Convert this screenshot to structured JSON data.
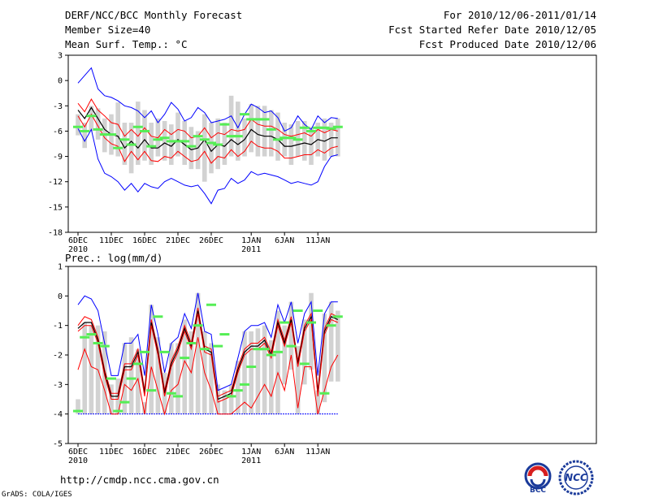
{
  "header": {
    "title": "DERF/NCC/BCC Monthly Forecast",
    "member_size": "Member Size=40",
    "variable": "Mean Surf. Temp.: °C",
    "period": "For 2010/12/06-2011/01/14",
    "start_date": "Fcst Started Refer Date 2010/12/05",
    "produced_date": "Fcst Produced Date 2010/12/06"
  },
  "footer": {
    "url": "http://cmdp.ncc.cma.gov.cn",
    "credit": "GrADS: COLA/IGES",
    "logo_bcc": "BCC",
    "logo_ncc": "NCC"
  },
  "colors": {
    "envelope": "#0000ff",
    "spread": "#ff0000",
    "mean": "#000000",
    "member_bar": "#d2d2d2",
    "mode_mark": "#55ee55"
  },
  "chart_data": [
    {
      "type": "line",
      "title": "Mean Surf. Temp.: °C",
      "ylim": [
        -18,
        3
      ],
      "yticks": [
        "3",
        "0",
        "-3",
        "-6",
        "-9",
        "-12",
        "-15",
        "-18"
      ],
      "xticks": [
        {
          "day": 0,
          "label": "6DEC",
          "sub": "2010"
        },
        {
          "day": 5,
          "label": "11DEC",
          "sub": ""
        },
        {
          "day": 10,
          "label": "16DEC",
          "sub": ""
        },
        {
          "day": 15,
          "label": "21DEC",
          "sub": ""
        },
        {
          "day": 20,
          "label": "26DEC",
          "sub": ""
        },
        {
          "day": 26,
          "label": "1JAN",
          "sub": "2011"
        },
        {
          "day": 31,
          "label": "6JAN",
          "sub": ""
        },
        {
          "day": 36,
          "label": "11JAN",
          "sub": ""
        }
      ],
      "x": [
        0,
        1,
        2,
        3,
        4,
        5,
        6,
        7,
        8,
        9,
        10,
        11,
        12,
        13,
        14,
        15,
        16,
        17,
        18,
        19,
        20,
        21,
        22,
        23,
        24,
        25,
        26,
        27,
        28,
        29,
        30,
        31,
        32,
        33,
        34,
        35,
        36,
        37,
        38,
        39
      ],
      "series": [
        {
          "name": "max",
          "role": "envelope",
          "values": [
            -0.3,
            0.6,
            1.5,
            -1.0,
            -1.8,
            -2.0,
            -2.4,
            -3.0,
            -3.2,
            -3.6,
            -4.4,
            -3.6,
            -5.0,
            -4.0,
            -2.6,
            -3.4,
            -4.8,
            -4.4,
            -3.2,
            -3.8,
            -5.0,
            -4.8,
            -4.6,
            -4.2,
            -5.6,
            -4.0,
            -2.8,
            -3.2,
            -3.8,
            -3.6,
            -4.4,
            -6.0,
            -5.6,
            -4.2,
            -5.2,
            -5.8,
            -4.2,
            -5.0,
            -4.4,
            -4.5
          ]
        },
        {
          "name": "upper",
          "role": "spread",
          "values": [
            -2.7,
            -3.7,
            -2.2,
            -3.5,
            -4.2,
            -5.0,
            -5.2,
            -6.6,
            -5.8,
            -6.6,
            -5.6,
            -6.6,
            -6.8,
            -5.8,
            -6.4,
            -5.8,
            -6.0,
            -6.8,
            -6.6,
            -5.6,
            -6.8,
            -6.2,
            -6.4,
            -5.8,
            -6.0,
            -5.8,
            -4.6,
            -5.2,
            -5.4,
            -5.4,
            -5.8,
            -6.4,
            -6.6,
            -6.4,
            -6.2,
            -6.6,
            -5.8,
            -6.2,
            -5.8,
            -6.0
          ]
        },
        {
          "name": "mean",
          "role": "mean",
          "values": [
            -3.5,
            -4.5,
            -3.2,
            -4.5,
            -5.8,
            -6.4,
            -6.6,
            -8.0,
            -7.2,
            -8.0,
            -7.0,
            -8.0,
            -8.0,
            -7.4,
            -7.8,
            -7.0,
            -7.6,
            -8.2,
            -8.0,
            -7.0,
            -8.4,
            -7.6,
            -7.8,
            -7.0,
            -7.6,
            -7.0,
            -5.8,
            -6.4,
            -6.6,
            -6.6,
            -7.0,
            -7.8,
            -7.8,
            -7.6,
            -7.4,
            -7.6,
            -7.0,
            -7.2,
            -6.8,
            -6.8
          ]
        },
        {
          "name": "lower",
          "role": "spread",
          "values": [
            -4.2,
            -5.5,
            -4.0,
            -5.4,
            -6.8,
            -7.5,
            -7.8,
            -9.6,
            -8.4,
            -9.4,
            -8.4,
            -9.5,
            -9.6,
            -9.0,
            -9.2,
            -8.4,
            -9.0,
            -9.6,
            -9.4,
            -8.4,
            -9.8,
            -9.0,
            -9.2,
            -8.2,
            -9.0,
            -8.4,
            -7.2,
            -7.8,
            -8.0,
            -8.0,
            -8.4,
            -9.2,
            -9.2,
            -9.0,
            -8.8,
            -8.8,
            -8.2,
            -8.6,
            -8.0,
            -7.8
          ]
        },
        {
          "name": "min",
          "role": "envelope",
          "values": [
            -5.7,
            -7.2,
            -5.8,
            -9.3,
            -11.0,
            -11.4,
            -12.0,
            -13.0,
            -12.2,
            -13.2,
            -12.2,
            -12.6,
            -12.8,
            -12.0,
            -11.6,
            -12.0,
            -12.4,
            -12.6,
            -12.4,
            -13.4,
            -14.6,
            -13.0,
            -12.8,
            -11.6,
            -12.2,
            -11.8,
            -10.8,
            -11.2,
            -11.0,
            -11.2,
            -11.4,
            -11.8,
            -12.2,
            -12.0,
            -12.2,
            -12.4,
            -12.0,
            -10.2,
            -9.0,
            -8.8
          ]
        }
      ],
      "bars": {
        "top": [
          -4.0,
          -5.0,
          -3.0,
          -3.3,
          -4.5,
          -4.0,
          -2.6,
          -5.0,
          -5.0,
          -2.5,
          -3.5,
          -5.0,
          -4.5,
          -4.8,
          -5.2,
          -3.8,
          -4.8,
          -5.5,
          -6.0,
          -4.0,
          -5.0,
          -4.5,
          -5.0,
          -1.8,
          -2.5,
          -4.5,
          -2.8,
          -3.0,
          -3.0,
          -3.5,
          -3.8,
          -5.0,
          -5.2,
          -4.8,
          -4.8,
          -5.5,
          -5.0,
          -4.5,
          -5.0,
          -4.5
        ],
        "bottom": [
          -6.5,
          -8.0,
          -6.0,
          -7.0,
          -8.5,
          -8.8,
          -9.0,
          -10.0,
          -11.0,
          -10.0,
          -9.5,
          -10.0,
          -9.0,
          -9.5,
          -10.0,
          -9.0,
          -10.0,
          -10.5,
          -10.5,
          -12.0,
          -11.0,
          -10.5,
          -10.0,
          -9.0,
          -9.5,
          -9.0,
          -8.5,
          -9.0,
          -9.0,
          -9.0,
          -9.5,
          -9.0,
          -10.0,
          -9.0,
          -9.5,
          -10.0,
          -9.0,
          -9.5,
          -9.0,
          -9.0
        ]
      },
      "mode": [
        -5.5,
        -6.0,
        -4.2,
        -5.8,
        -6.4,
        -6.4,
        -8.0,
        -7.0,
        -7.6,
        -5.5,
        -6.0,
        -7.8,
        -7.0,
        -6.8,
        -7.2,
        -7.2,
        -7.2,
        -7.8,
        -6.6,
        -7.0,
        -7.4,
        -7.6,
        -5.2,
        -6.6,
        -6.6,
        -4.0,
        -4.6,
        -4.6,
        -4.6,
        -5.8,
        -7.0,
        -6.8,
        -6.8,
        -7.0,
        -5.6,
        -6.0,
        -5.6,
        -5.6,
        -5.7,
        -5.5
      ]
    },
    {
      "type": "line",
      "title": "Prec.: log(mm/d)",
      "ylim": [
        -5,
        1
      ],
      "yticks": [
        "1",
        "0",
        "-1",
        "-2",
        "-3",
        "-4",
        "-5"
      ],
      "xticks": [
        {
          "day": 0,
          "label": "6DEC",
          "sub": "2010"
        },
        {
          "day": 5,
          "label": "11DEC",
          "sub": ""
        },
        {
          "day": 10,
          "label": "16DEC",
          "sub": ""
        },
        {
          "day": 15,
          "label": "21DEC",
          "sub": ""
        },
        {
          "day": 20,
          "label": "26DEC",
          "sub": ""
        },
        {
          "day": 26,
          "label": "1JAN",
          "sub": "2011"
        },
        {
          "day": 31,
          "label": "6JAN",
          "sub": ""
        },
        {
          "day": 36,
          "label": "11JAN",
          "sub": ""
        }
      ],
      "x": [
        0,
        1,
        2,
        3,
        4,
        5,
        6,
        7,
        8,
        9,
        10,
        11,
        12,
        13,
        14,
        15,
        16,
        17,
        18,
        19,
        20,
        21,
        22,
        23,
        24,
        25,
        26,
        27,
        28,
        29,
        30,
        31,
        32,
        33,
        34,
        35,
        36,
        37,
        38,
        39
      ],
      "baseline": -4,
      "series": [
        {
          "name": "max",
          "role": "envelope",
          "values": [
            -0.3,
            0.0,
            -0.1,
            -0.5,
            -1.6,
            -2.7,
            -2.7,
            -1.6,
            -1.6,
            -1.3,
            -2.7,
            -0.3,
            -1.3,
            -2.6,
            -1.6,
            -1.4,
            -0.6,
            -1.1,
            0.1,
            -1.2,
            -1.3,
            -3.2,
            -3.1,
            -3.0,
            -2.1,
            -1.2,
            -1.0,
            -1.0,
            -0.9,
            -1.4,
            -0.3,
            -0.9,
            -0.2,
            -1.6,
            -0.6,
            -0.2,
            -2.7,
            -0.6,
            -0.2,
            -0.2
          ]
        },
        {
          "name": "upper",
          "role": "spread",
          "values": [
            -1.0,
            -0.7,
            -0.8,
            -1.4,
            -2.5,
            -3.3,
            -3.3,
            -2.3,
            -2.3,
            -1.8,
            -3.2,
            -0.8,
            -1.8,
            -3.2,
            -2.2,
            -1.7,
            -1.0,
            -1.6,
            -0.4,
            -1.7,
            -1.8,
            -3.4,
            -3.3,
            -3.2,
            -2.4,
            -1.8,
            -1.6,
            -1.6,
            -1.4,
            -1.9,
            -0.8,
            -1.5,
            -0.7,
            -2.2,
            -1.0,
            -0.6,
            -3.2,
            -1.1,
            -0.6,
            -0.7
          ]
        },
        {
          "name": "mean",
          "role": "mean",
          "values": [
            -1.1,
            -0.9,
            -0.9,
            -1.5,
            -2.6,
            -3.4,
            -3.4,
            -2.4,
            -2.4,
            -1.9,
            -3.3,
            -0.9,
            -1.9,
            -3.3,
            -2.3,
            -1.8,
            -1.1,
            -1.7,
            -0.5,
            -1.8,
            -1.9,
            -3.5,
            -3.4,
            -3.3,
            -2.5,
            -1.9,
            -1.7,
            -1.7,
            -1.5,
            -2.0,
            -0.9,
            -1.6,
            -0.8,
            -2.3,
            -1.1,
            -0.7,
            -3.3,
            -1.2,
            -0.7,
            -0.8
          ]
        },
        {
          "name": "lower",
          "role": "spread",
          "values": [
            -1.2,
            -1.0,
            -1.0,
            -1.6,
            -2.7,
            -3.5,
            -3.5,
            -2.5,
            -2.5,
            -2.0,
            -3.4,
            -1.0,
            -2.0,
            -3.4,
            -2.4,
            -1.9,
            -1.2,
            -1.8,
            -0.6,
            -1.9,
            -2.0,
            -3.6,
            -3.5,
            -3.4,
            -2.6,
            -2.0,
            -1.8,
            -1.8,
            -1.6,
            -2.1,
            -1.0,
            -1.7,
            -0.9,
            -2.4,
            -1.2,
            -0.8,
            -3.4,
            -1.3,
            -0.8,
            -0.9
          ]
        },
        {
          "name": "low",
          "role": "spread_low",
          "values": [
            -2.5,
            -1.8,
            -2.4,
            -2.5,
            -3.2,
            -4.0,
            -4.0,
            -3.0,
            -3.2,
            -2.8,
            -4.0,
            -2.4,
            -3.2,
            -4.0,
            -3.2,
            -3.0,
            -2.2,
            -2.6,
            -1.4,
            -2.6,
            -3.2,
            -4.0,
            -4.0,
            -4.0,
            -3.8,
            -3.6,
            -3.8,
            -3.4,
            -3.0,
            -3.4,
            -2.6,
            -3.2,
            -2.0,
            -3.8,
            -2.4,
            -2.4,
            -4.0,
            -3.2,
            -2.4,
            -2.0
          ]
        }
      ],
      "bars": {
        "top": [
          -3.5,
          -0.9,
          -1.0,
          -1.0,
          -1.2,
          -3.0,
          -2.8,
          -1.6,
          -1.4,
          -1.8,
          -3.6,
          -0.3,
          -1.4,
          -2.6,
          -1.6,
          -1.6,
          -0.8,
          -1.2,
          0.1,
          -1.2,
          -1.6,
          -3.0,
          -3.2,
          -3.0,
          -2.2,
          -1.2,
          -1.2,
          -1.1,
          -1.0,
          -1.5,
          -0.5,
          -1.0,
          -0.2,
          -1.7,
          -0.8,
          0.1,
          -3.2,
          -0.6,
          -0.2,
          -0.5
        ],
        "bottom": [
          -4.0,
          -4.0,
          -4.0,
          -4.0,
          -4.0,
          -4.0,
          -4.0,
          -4.0,
          -4.0,
          -4.0,
          -4.0,
          -4.0,
          -4.0,
          -4.0,
          -4.0,
          -4.0,
          -4.0,
          -4.0,
          -4.0,
          -4.0,
          -4.0,
          -4.0,
          -4.0,
          -4.0,
          -4.0,
          -4.0,
          -4.0,
          -4.0,
          -4.0,
          -4.0,
          -4.0,
          -3.0,
          -2.5,
          -4.0,
          -3.0,
          -2.5,
          -4.0,
          -3.6,
          -2.9,
          -2.9
        ]
      },
      "mode": [
        -3.9,
        -1.4,
        -1.3,
        -1.6,
        -1.7,
        -2.8,
        -3.9,
        -3.6,
        -2.8,
        -2.3,
        -1.9,
        -3.2,
        -0.7,
        -1.9,
        -3.3,
        -3.4,
        -2.1,
        -1.6,
        -1.0,
        -1.8,
        -0.3,
        -1.7,
        -1.3,
        -3.4,
        -3.2,
        -3.0,
        -2.4,
        -1.8,
        -1.8,
        -2.0,
        -1.9,
        -0.9,
        -1.7,
        -0.5,
        -2.3,
        -0.9,
        -0.5,
        -3.3,
        -1.0,
        -0.7
      ]
    }
  ]
}
